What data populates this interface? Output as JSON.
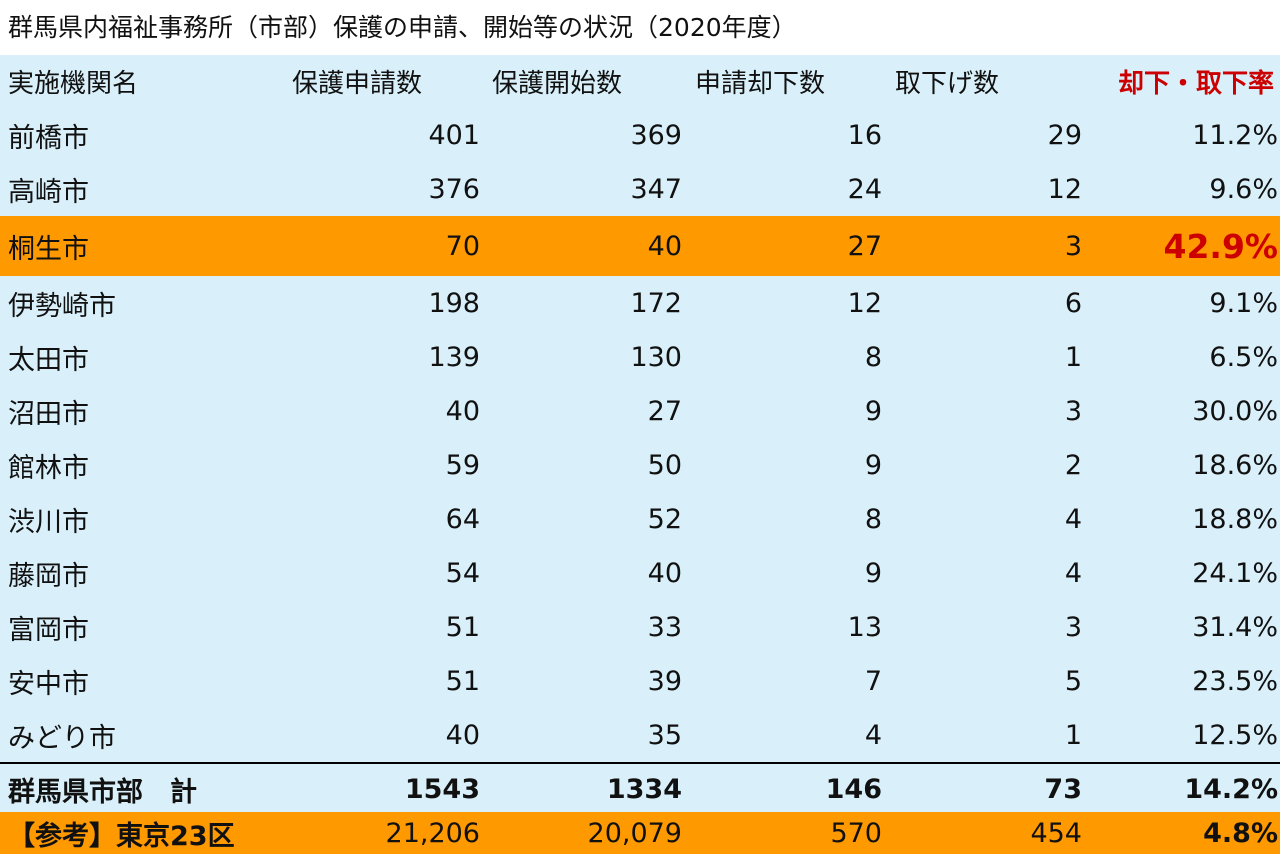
{
  "title": "群馬県内福祉事務所（市部）保護の申請、開始等の状況（2020年度）",
  "table": {
    "header": [
      "実施機関名",
      "保護申請数",
      "保護開始数",
      "申請却下数",
      "取下げ数",
      "却下・取下率"
    ],
    "rows": [
      [
        "前橋市",
        "401",
        "369",
        "16",
        "29",
        "11.2%"
      ],
      [
        "高崎市",
        "376",
        "347",
        "24",
        "12",
        "9.6%"
      ],
      [
        "桐生市",
        "70",
        "40",
        "27",
        "3",
        "42.9%"
      ],
      [
        "伊勢崎市",
        "198",
        "172",
        "12",
        "6",
        "9.1%"
      ],
      [
        "太田市",
        "139",
        "130",
        "8",
        "1",
        "6.5%"
      ],
      [
        "沼田市",
        "40",
        "27",
        "9",
        "3",
        "30.0%"
      ],
      [
        "館林市",
        "59",
        "50",
        "9",
        "2",
        "18.6%"
      ],
      [
        "渋川市",
        "64",
        "52",
        "8",
        "4",
        "18.8%"
      ],
      [
        "藤岡市",
        "54",
        "40",
        "9",
        "4",
        "24.1%"
      ],
      [
        "富岡市",
        "51",
        "33",
        "13",
        "3",
        "31.4%"
      ],
      [
        "安中市",
        "51",
        "39",
        "7",
        "5",
        "23.5%"
      ],
      [
        "みどり市",
        "40",
        "35",
        "4",
        "1",
        "12.5%"
      ],
      [
        "群馬県市部　計",
        "1543",
        "1334",
        "146",
        "73",
        "14.2%"
      ],
      [
        "【参考】東京23区",
        "21,206",
        "20,079",
        "570",
        "454",
        "4.8%"
      ]
    ]
  }
}
